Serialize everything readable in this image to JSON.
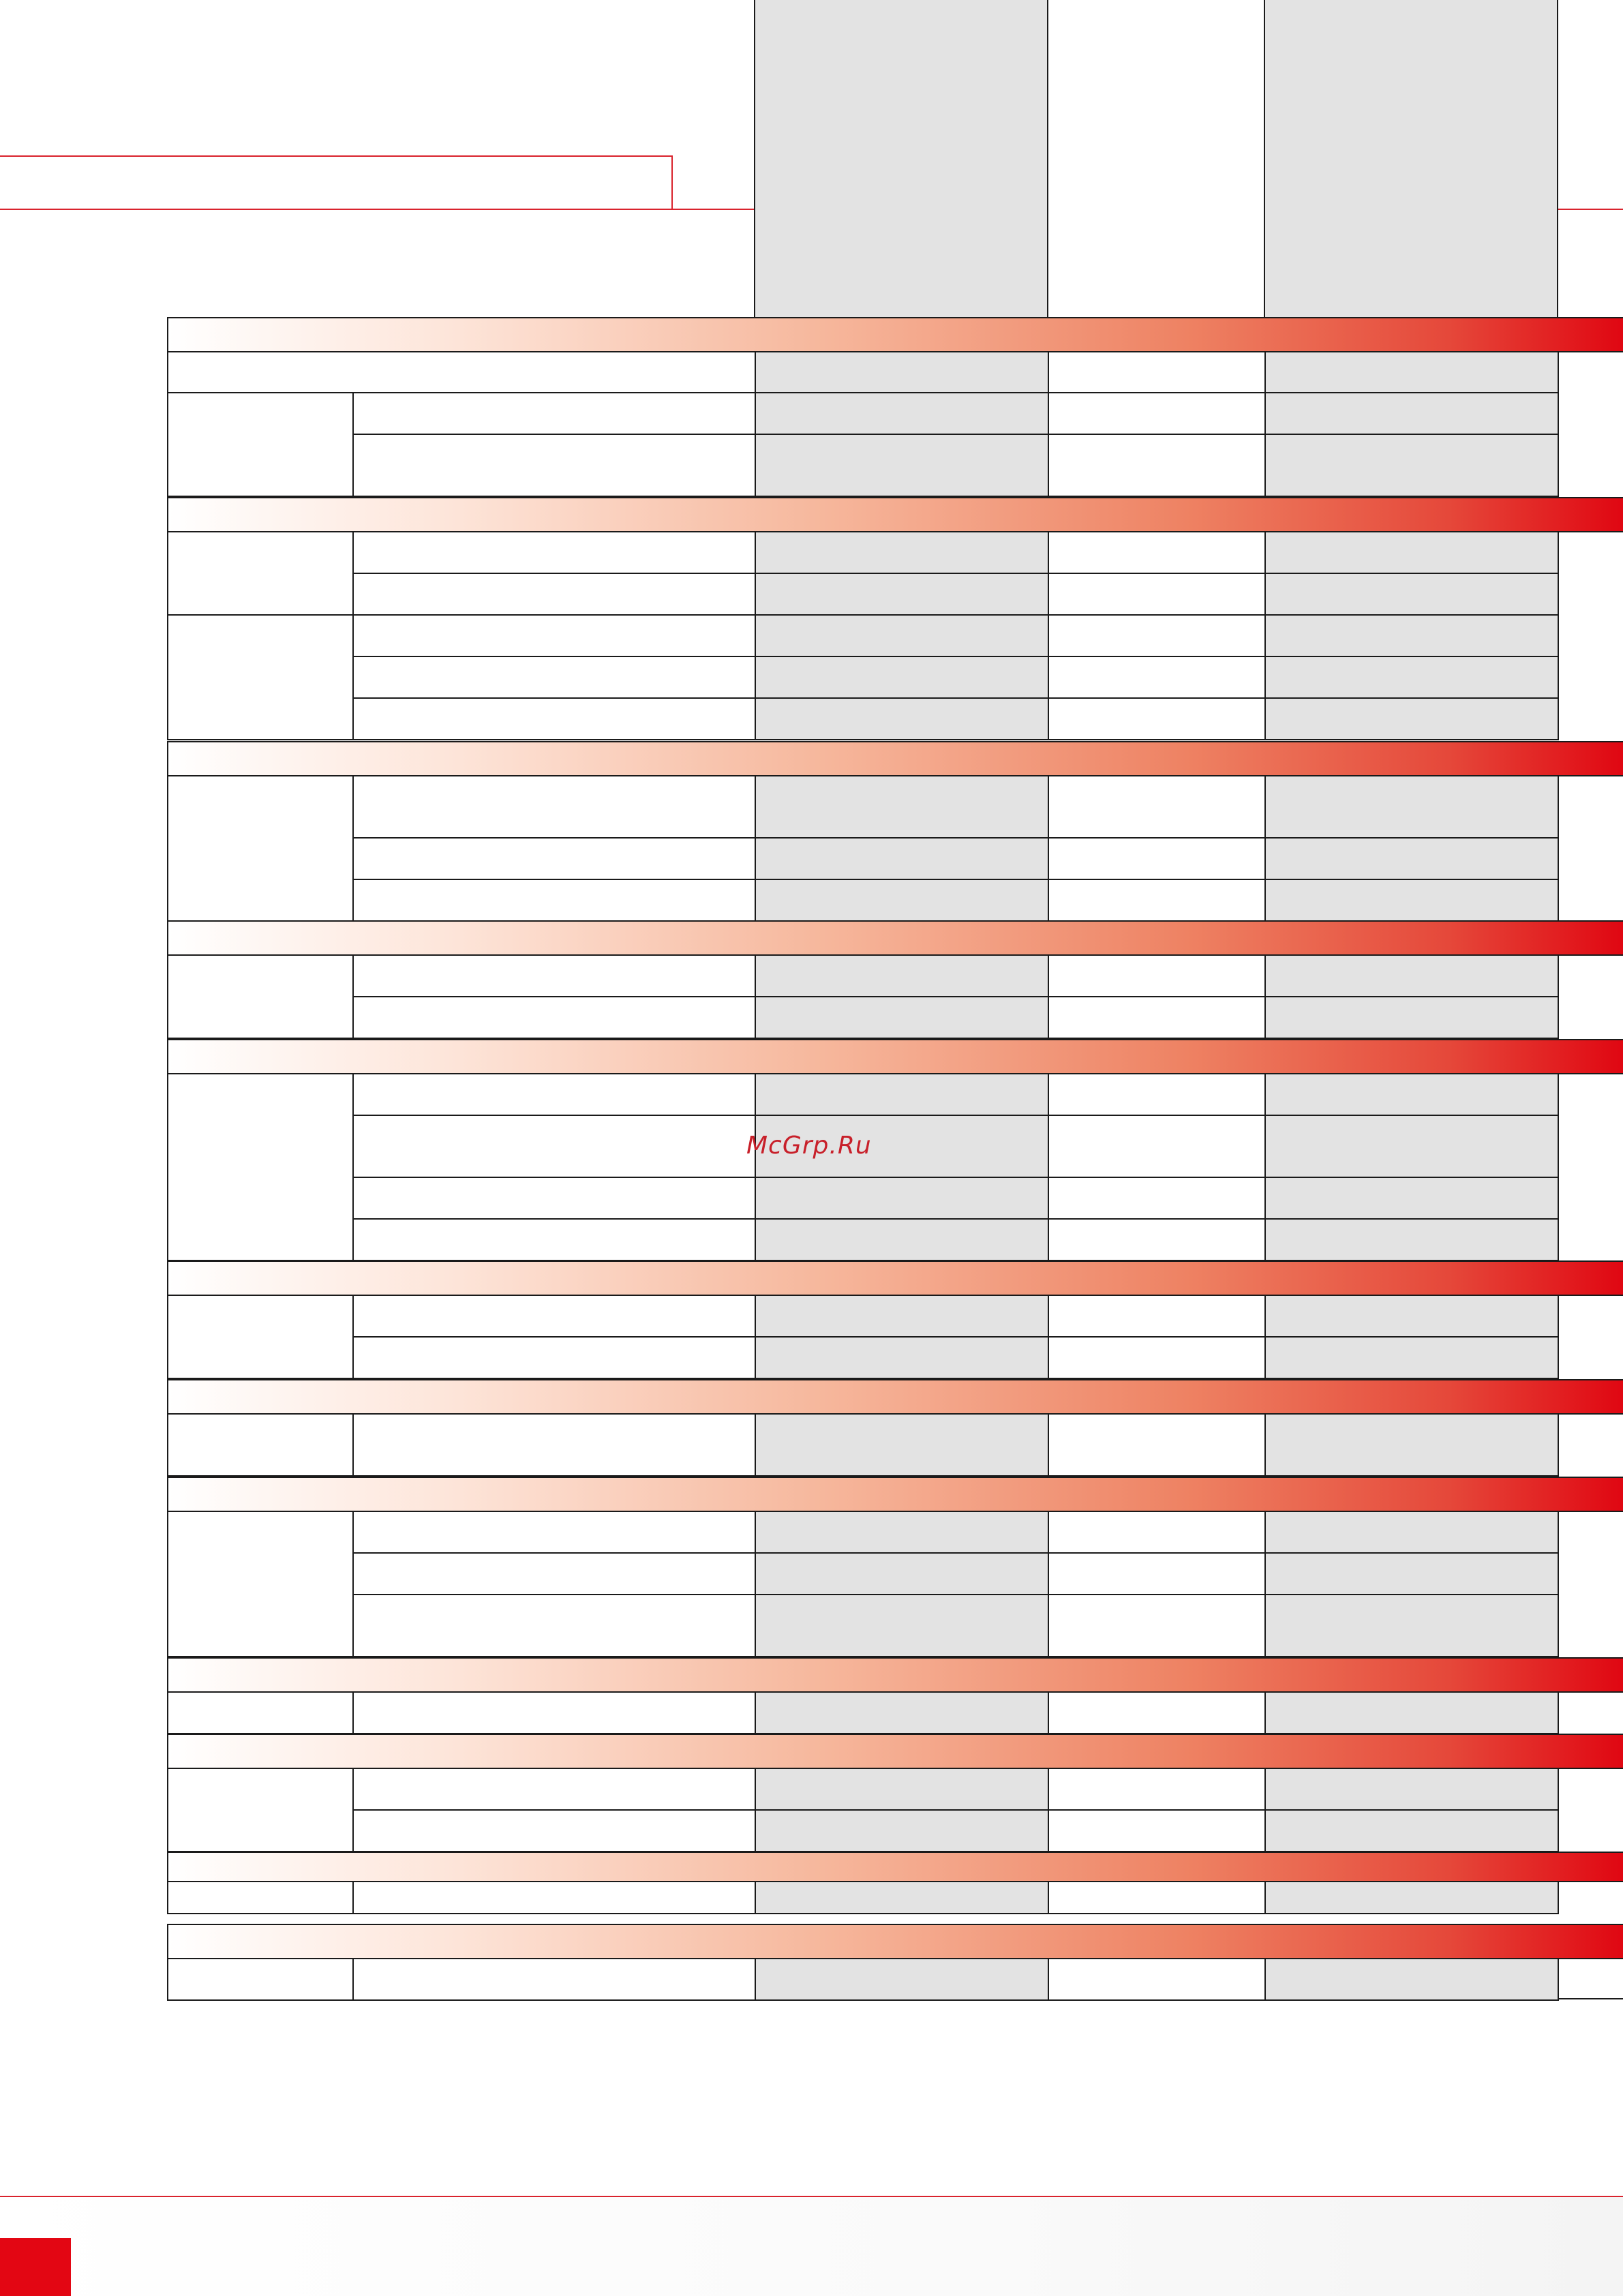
{
  "watermark": {
    "text": "McGrp.Ru"
  },
  "colors": {
    "accent_red": "#e30613",
    "rule_red": "#d9232d",
    "gray_column": "#e3e3e3",
    "grid_line": "#1a1a1a"
  },
  "table": {
    "columns": [
      "section",
      "label",
      "value_a",
      "value_b",
      "value_c"
    ],
    "sections": [
      {
        "title": "",
        "rows": 3
      },
      {
        "title": "",
        "rows": 5
      },
      {
        "title": "",
        "rows": 3
      },
      {
        "title": "",
        "rows": 2
      },
      {
        "title": "",
        "rows": 4
      },
      {
        "title": "",
        "rows": 2
      },
      {
        "title": "",
        "rows": 1
      },
      {
        "title": "",
        "rows": 3
      },
      {
        "title": "",
        "rows": 1
      },
      {
        "title": "",
        "rows": 2
      },
      {
        "title": "",
        "rows": 1
      },
      {
        "title": "",
        "rows": 1
      }
    ]
  }
}
